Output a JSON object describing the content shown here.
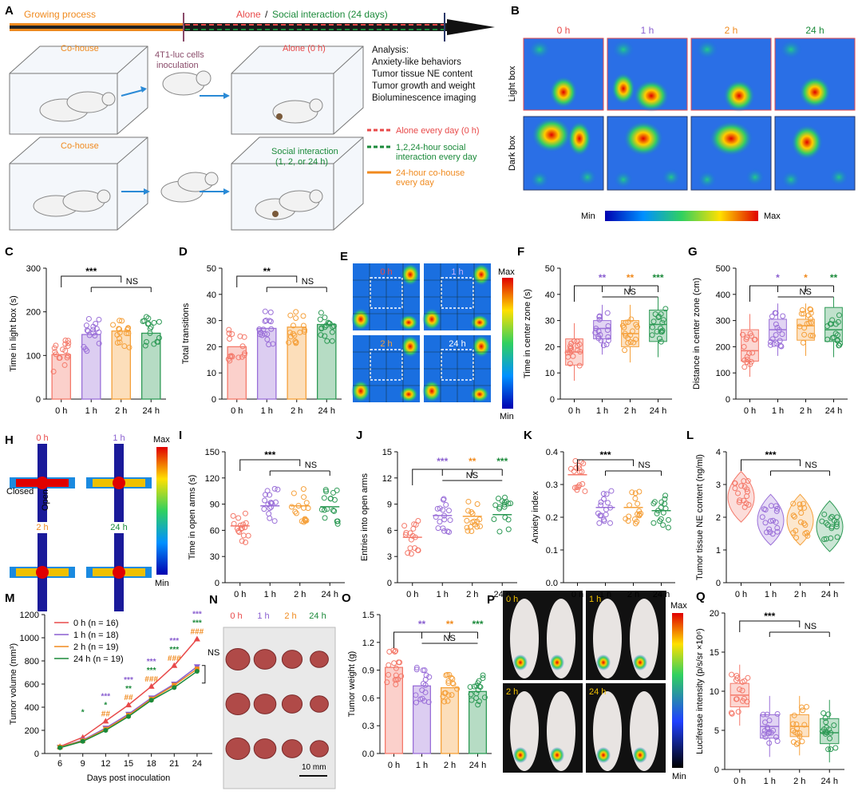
{
  "colors": {
    "c0": "#f4796a",
    "c1": "#9a6fd8",
    "c2": "#f5a03a",
    "c3": "#2e9a56",
    "red": "#e84a4a",
    "green": "#1b8a3a",
    "orange": "#f08a1e",
    "purple": "#8a5fd0"
  },
  "panelA": {
    "letter": "A",
    "growing": "Growing process",
    "alone": "Alone",
    "slash": "/",
    "social": "Social interaction (24 days)",
    "cohouse1": "Co-house",
    "cohouse2": "Co-house",
    "inoculation1": "4T1-luc cells",
    "inoculation2": "inoculation",
    "alone0": "Alone (0 h)",
    "social1": "Social interaction",
    "social2": "(1, 2, or 24 h)",
    "analysis": [
      "Analysis:",
      "Anxiety-like behaviors",
      "Tumor tissue NE content",
      "Tumor growth and weight",
      "Bioluminescence imaging"
    ],
    "legend": [
      "Alone every day (0 h)",
      "1,2,24-hour social",
      "interaction every day",
      "24-hour co-house",
      "every day"
    ]
  },
  "panelB": {
    "letter": "B",
    "cols": [
      "0 h",
      "1 h",
      "2 h",
      "24 h"
    ],
    "rows": [
      "Light box",
      "Dark box"
    ],
    "min": "Min",
    "max": "Max"
  },
  "panelE": {
    "letter": "E",
    "labels": [
      "0 h",
      "1 h",
      "2 h",
      "24 h"
    ],
    "max": "Max",
    "min": "Min"
  },
  "panelH": {
    "letter": "H",
    "labels": [
      "0 h",
      "1 h",
      "2 h",
      "24 h"
    ],
    "closed": "Closed",
    "open": "Open",
    "max": "Max",
    "min": "Min"
  },
  "panelN": {
    "letter": "N",
    "labels": [
      "0 h",
      "1 h",
      "2 h",
      "24 h"
    ],
    "scale": "10 mm"
  },
  "panelP": {
    "letter": "P",
    "labels": [
      "0 h",
      "1 h",
      "2 h",
      "24 h"
    ],
    "max": "Max",
    "min": "Min"
  },
  "chart_data": [
    {
      "id": "C",
      "type": "bar",
      "categories": [
        "0 h",
        "1 h",
        "2 h",
        "24 h"
      ],
      "values": [
        102,
        148,
        156,
        151
      ],
      "ylabel": "Time in light box (s)",
      "ylim": [
        0,
        300
      ],
      "yticks": [
        0,
        100,
        200,
        300
      ],
      "sig": [
        "***",
        "NS"
      ]
    },
    {
      "id": "D",
      "type": "bar",
      "categories": [
        "0 h",
        "1 h",
        "2 h",
        "24 h"
      ],
      "values": [
        20,
        27,
        27.5,
        28.5
      ],
      "ylabel": "Total transitions",
      "ylim": [
        0,
        50
      ],
      "yticks": [
        0,
        10,
        20,
        30,
        40,
        50
      ],
      "sig": [
        "**",
        "NS"
      ]
    },
    {
      "id": "F",
      "type": "box",
      "categories": [
        "0 h",
        "1 h",
        "2 h",
        "24 h"
      ],
      "medians": [
        18,
        27,
        25,
        28.5
      ],
      "q1": [
        13,
        23,
        20,
        22
      ],
      "q3": [
        23,
        30,
        30,
        34
      ],
      "ylabel": "Time in center  zone (s)",
      "ylim": [
        0,
        50
      ],
      "yticks": [
        0,
        10,
        20,
        30,
        40,
        50
      ],
      "sig": [
        "**",
        "**",
        "***",
        "NS"
      ]
    },
    {
      "id": "G",
      "type": "box",
      "categories": [
        "0 h",
        "1 h",
        "2 h",
        "24 h"
      ],
      "medians": [
        185,
        265,
        280,
        265
      ],
      "q1": [
        145,
        225,
        225,
        220
      ],
      "q3": [
        265,
        305,
        305,
        350
      ],
      "ylabel": "Distance in center  zone  (cm)",
      "ylim": [
        0,
        500
      ],
      "yticks": [
        0,
        100,
        200,
        300,
        400,
        500
      ],
      "sig": [
        "*",
        "*",
        "**",
        "NS"
      ]
    },
    {
      "id": "I",
      "type": "scatter",
      "categories": [
        "0 h",
        "1 h",
        "2 h",
        "24 h"
      ],
      "means": [
        65,
        88,
        88,
        87
      ],
      "ylabel": "Time in open arms (s)",
      "ylim": [
        0,
        150
      ],
      "yticks": [
        0,
        30,
        60,
        90,
        120,
        150
      ],
      "sig": [
        "***",
        "NS"
      ]
    },
    {
      "id": "J",
      "type": "scatter",
      "categories": [
        "0 h",
        "1 h",
        "2 h",
        "24 h"
      ],
      "means": [
        5.2,
        7.7,
        7.6,
        7.8
      ],
      "ylabel": "Entries into open arms",
      "ylim": [
        0,
        15
      ],
      "yticks": [
        0,
        3,
        6,
        9,
        12,
        15
      ],
      "sig": [
        "***",
        "**",
        "***",
        "NS"
      ]
    },
    {
      "id": "K",
      "type": "scatter",
      "categories": [
        "0 h",
        "1 h",
        "2 h",
        "24 h"
      ],
      "means": [
        0.33,
        0.23,
        0.23,
        0.22
      ],
      "ylabel": "Anxiety index",
      "ylim": [
        0,
        0.4
      ],
      "yticks": [
        0.0,
        0.1,
        0.2,
        0.3,
        0.4
      ],
      "sig": [
        "***",
        "NS"
      ]
    },
    {
      "id": "L",
      "type": "violin",
      "categories": [
        "0 h",
        "1 h",
        "2 h",
        "24 h"
      ],
      "means": [
        2.6,
        1.9,
        1.9,
        1.7
      ],
      "ylabel": "Tumor tissue NE content (ng/ml)",
      "ylim": [
        0,
        4
      ],
      "yticks": [
        0,
        1,
        2,
        3,
        4
      ],
      "sig": [
        "***",
        "NS"
      ]
    },
    {
      "id": "M",
      "type": "line",
      "x": [
        6,
        9,
        12,
        15,
        18,
        21,
        24
      ],
      "series": [
        {
          "name": "0 h (n = 16)",
          "values": [
            60,
            140,
            280,
            420,
            580,
            760,
            990
          ]
        },
        {
          "name": "1 h (n = 18)",
          "values": [
            55,
            115,
            220,
            340,
            480,
            600,
            750
          ]
        },
        {
          "name": "2 h (n = 19)",
          "values": [
            55,
            110,
            210,
            330,
            470,
            590,
            730
          ]
        },
        {
          "name": "24 h (n = 19)",
          "values": [
            50,
            105,
            200,
            320,
            460,
            570,
            710
          ]
        }
      ],
      "xlabel": "Days post inoculation",
      "ylabel": "Tumor volume (mm³)",
      "ylim": [
        0,
        1200
      ],
      "yticks": [
        0,
        200,
        400,
        600,
        800,
        1000,
        1200
      ],
      "sig": [
        "*",
        "***",
        "*",
        "##",
        "***",
        "**",
        "##",
        "***",
        "***",
        "###",
        "***",
        "***",
        "###",
        "***",
        "***",
        "###",
        "***",
        "NS"
      ]
    },
    {
      "id": "O",
      "type": "bar",
      "categories": [
        "0 h",
        "1 h",
        "2 h",
        "24 h"
      ],
      "values": [
        0.93,
        0.73,
        0.71,
        0.67
      ],
      "ylabel": "Tumor weight (g)",
      "ylim": [
        0,
        1.5
      ],
      "yticks": [
        0.0,
        0.3,
        0.6,
        0.9,
        1.2,
        1.5
      ],
      "sig": [
        "**",
        "**",
        "***",
        "NS"
      ]
    },
    {
      "id": "Q",
      "type": "box",
      "categories": [
        "0 h",
        "1 h",
        "2 h",
        "24 h"
      ],
      "medians": [
        9.5,
        5.5,
        5.5,
        4.7
      ],
      "q1": [
        8,
        4,
        4.2,
        3.3
      ],
      "q3": [
        11,
        7,
        7,
        6.5
      ],
      "ylabel": "Luciferase intensity (p/s/sr ×10⁶)",
      "ylim": [
        0,
        20
      ],
      "yticks": [
        0,
        5,
        10,
        15,
        20
      ],
      "sig": [
        "***",
        "NS"
      ]
    }
  ]
}
